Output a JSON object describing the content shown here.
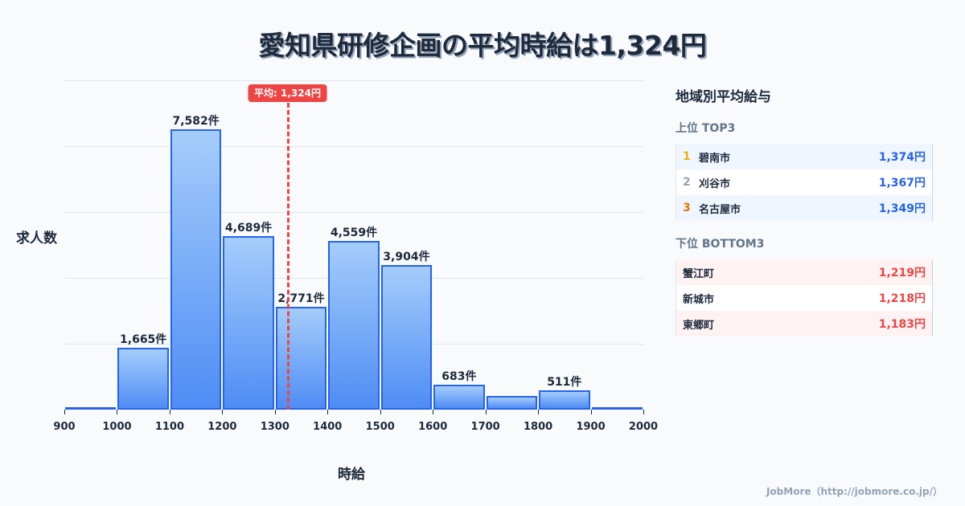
{
  "title": "愛知県研修企画の平均時給は1,324円",
  "chart_data": {
    "type": "bar",
    "title": "愛知県研修企画の平均時給は1,324円",
    "xlabel": "時給",
    "ylabel": "求人数",
    "bin_edges": [
      900,
      1000,
      1100,
      1200,
      1300,
      1400,
      1500,
      1600,
      1700,
      1800,
      1900,
      2000
    ],
    "categories": [
      "900-1000",
      "1000-1100",
      "1100-1200",
      "1200-1300",
      "1300-1400",
      "1400-1500",
      "1500-1600",
      "1600-1700",
      "1700-1800",
      "1800-1900",
      "1900-2000"
    ],
    "values": [
      20,
      1665,
      7582,
      4689,
      2771,
      4559,
      3904,
      683,
      370,
      511,
      40
    ],
    "labels": [
      "",
      "1,665件",
      "7,582件",
      "4,689件",
      "2,771件",
      "4,559件",
      "3,904件",
      "683件",
      "",
      "511件",
      ""
    ],
    "x_ticks": [
      "900",
      "1000",
      "1100",
      "1200",
      "1300",
      "1400",
      "1500",
      "1600",
      "1700",
      "1800",
      "1900",
      "2000"
    ],
    "xlim": [
      900,
      2000
    ],
    "ylim": [
      0,
      8900
    ],
    "grid": true,
    "mean": {
      "value": 1324,
      "label": "平均: 1,324円",
      "color": "#ef4444"
    },
    "bar_color": "#2563eb"
  },
  "panel": {
    "title": "地域別平均給与",
    "top": {
      "heading": "上位 TOP3",
      "rows": [
        {
          "rank": "1",
          "name": "碧南市",
          "value": "1,374円",
          "rank_color": "#eab308"
        },
        {
          "rank": "2",
          "name": "刈谷市",
          "value": "1,367円",
          "rank_color": "#9ca3af"
        },
        {
          "rank": "3",
          "name": "名古屋市",
          "value": "1,349円",
          "rank_color": "#d97706"
        }
      ]
    },
    "bottom": {
      "heading": "下位 BOTTOM3",
      "rows": [
        {
          "name": "蟹江町",
          "value": "1,219円"
        },
        {
          "name": "新城市",
          "value": "1,218円"
        },
        {
          "name": "東郷町",
          "value": "1,183円"
        }
      ]
    }
  },
  "footer": "JobMore（http://jobmore.co.jp/）"
}
